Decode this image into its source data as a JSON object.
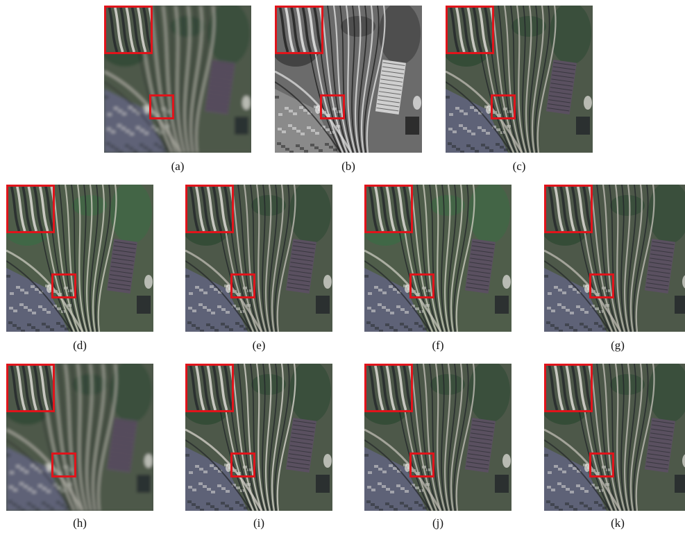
{
  "panels": [
    {
      "label": "(a)",
      "style": "blur-color"
    },
    {
      "label": "(b)",
      "style": "pan-gray"
    },
    {
      "label": "(c)",
      "style": "color"
    },
    {
      "label": "(d)",
      "style": "color-green"
    },
    {
      "label": "(e)",
      "style": "color"
    },
    {
      "label": "(f)",
      "style": "color-green"
    },
    {
      "label": "(g)",
      "style": "color"
    },
    {
      "label": "(h)",
      "style": "blur-color"
    },
    {
      "label": "(i)",
      "style": "color-sharp"
    },
    {
      "label": "(j)",
      "style": "color"
    },
    {
      "label": "(k)",
      "style": "color"
    }
  ],
  "colors": {
    "highlight": "#e0141b"
  }
}
